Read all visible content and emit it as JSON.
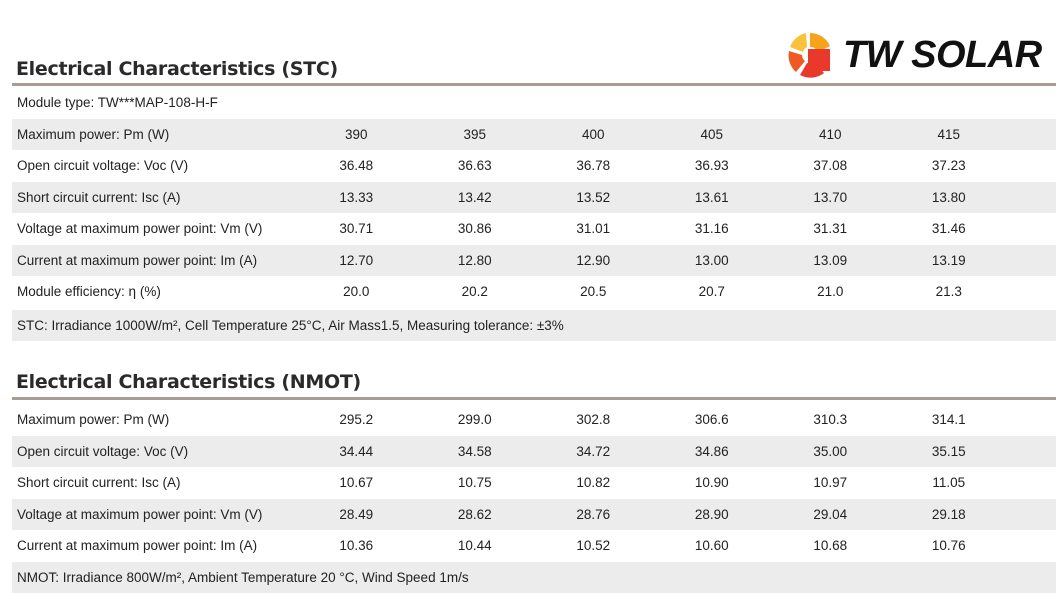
{
  "logo": {
    "text": "TW SOLAR",
    "colors": [
      "#e8392b",
      "#f6a21a"
    ]
  },
  "stc": {
    "title": "Electrical Characteristics (STC)",
    "module_type": "Module type: TW***MAP-108-H-F",
    "rows": [
      {
        "label": "Maximum power: Pm (W)",
        "values": [
          "390",
          "395",
          "400",
          "405",
          "410",
          "415"
        ]
      },
      {
        "label": "Open circuit voltage: Voc (V)",
        "values": [
          "36.48",
          "36.63",
          "36.78",
          "36.93",
          "37.08",
          "37.23"
        ]
      },
      {
        "label": "Short circuit current: Isc (A)",
        "values": [
          "13.33",
          "13.42",
          "13.52",
          "13.61",
          "13.70",
          "13.80"
        ]
      },
      {
        "label": "Voltage at maximum power point: Vm (V)",
        "values": [
          "30.71",
          "30.86",
          "31.01",
          "31.16",
          "31.31",
          "31.46"
        ]
      },
      {
        "label": "Current at maximum power point: Im (A)",
        "values": [
          "12.70",
          "12.80",
          "12.90",
          "13.00",
          "13.09",
          "13.19"
        ]
      },
      {
        "label": "Module efficiency: η (%)",
        "values": [
          "20.0",
          "20.2",
          "20.5",
          "20.7",
          "21.0",
          "21.3"
        ]
      }
    ],
    "note": "STC: Irradiance 1000W/m², Cell Temperature 25°C, Air Mass1.5, Measuring tolerance: ±3%"
  },
  "nmot": {
    "title": "Electrical Characteristics (NMOT)",
    "rows": [
      {
        "label": "Maximum power: Pm (W)",
        "values": [
          "295.2",
          "299.0",
          "302.8",
          "306.6",
          "310.3",
          "314.1"
        ]
      },
      {
        "label": "Open circuit voltage: Voc (V)",
        "values": [
          "34.44",
          "34.58",
          "34.72",
          "34.86",
          "35.00",
          "35.15"
        ]
      },
      {
        "label": "Short circuit current: Isc (A)",
        "values": [
          "10.67",
          "10.75",
          "10.82",
          "10.90",
          "10.97",
          "11.05"
        ]
      },
      {
        "label": "Voltage at maximum power point: Vm (V)",
        "values": [
          "28.49",
          "28.62",
          "28.76",
          "28.90",
          "29.04",
          "29.18"
        ]
      },
      {
        "label": "Current at maximum power point: Im (A)",
        "values": [
          "10.36",
          "10.44",
          "10.52",
          "10.60",
          "10.68",
          "10.76"
        ]
      }
    ],
    "note": "NMOT: Irradiance 800W/m², Ambient Temperature 20 °C, Wind Speed 1m/s"
  }
}
